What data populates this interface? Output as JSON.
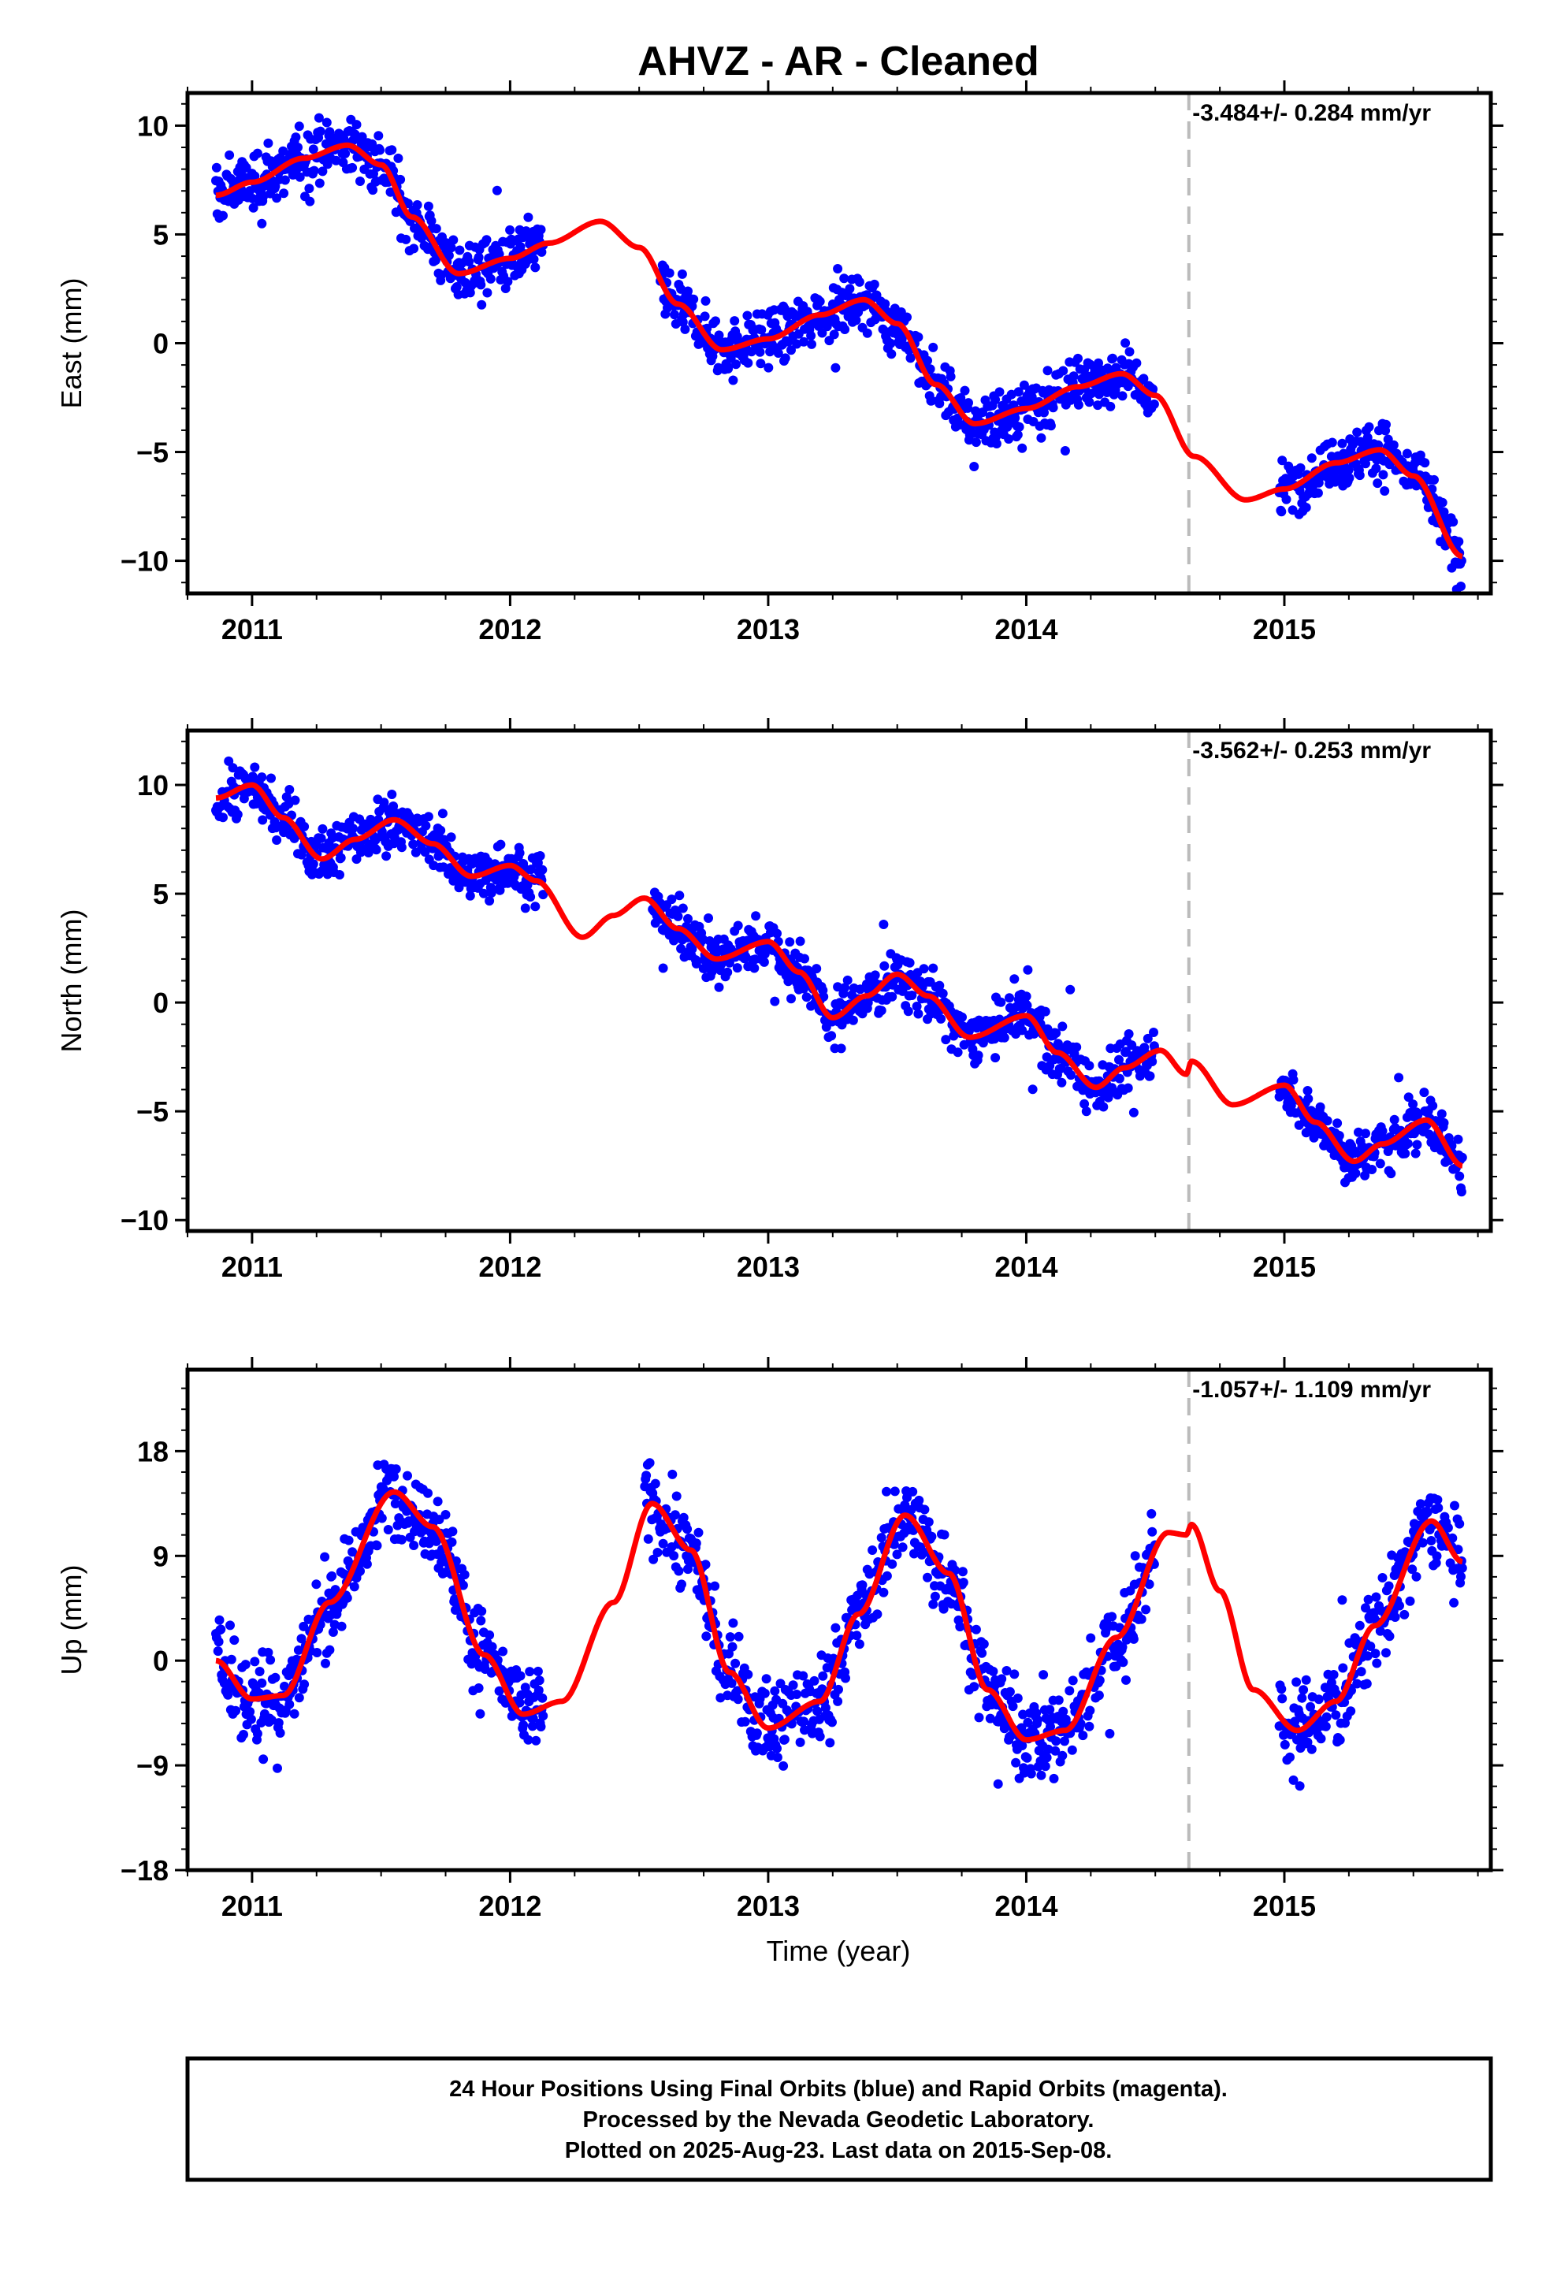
{
  "colors": {
    "final_orbits": "#0000ff",
    "model_fit": "#ff0000",
    "break_line": "#bbbbbb",
    "frame": "#000000"
  },
  "chart_data": {
    "title": "AHVZ  - AR - Cleaned",
    "xlabel": "Time (year)",
    "x_tick_labels": [
      "2011",
      "2012",
      "2013",
      "2014",
      "2015"
    ],
    "xlim": [
      2010.75,
      2015.8
    ],
    "break_epoch": 2014.63,
    "footer": [
      "24 Hour Positions Using Final Orbits (blue) and Rapid Orbits (magenta).",
      "Processed by the Nevada Geodetic Laboratory.",
      "Plotted on 2025-Aug-23. Last data on 2015-Sep-08."
    ],
    "panels": [
      {
        "type": "scatter",
        "component": "east",
        "ylabel": "East (mm)",
        "rate": "-3.484+/- 0.284 mm/yr",
        "ylim": [
          -11.5,
          11.5
        ],
        "ytick_labels": [
          "10",
          "5",
          "0",
          "−5",
          "−10"
        ],
        "yticks": [
          10,
          5,
          0,
          -5,
          -10
        ],
        "series": [
          {
            "legend": "Final Orbits (blue)",
            "color": "blue",
            "kind": "daily positions",
            "x_range": [
              2010.86,
              2015.69
            ],
            "noise_mm": 0.9
          },
          {
            "legend": "model",
            "color": "red",
            "kind": "trend + seasonal fit",
            "model_points": [
              [
                2010.86,
                6.8
              ],
              [
                2011.0,
                7.4
              ],
              [
                2011.2,
                8.5
              ],
              [
                2011.37,
                9.1
              ],
              [
                2011.5,
                8.2
              ],
              [
                2011.62,
                5.8
              ],
              [
                2011.8,
                3.2
              ],
              [
                2012.0,
                3.9
              ],
              [
                2012.15,
                4.6
              ],
              [
                2012.35,
                5.6
              ],
              [
                2012.5,
                4.4
              ],
              [
                2012.65,
                1.8
              ],
              [
                2012.82,
                -0.3
              ],
              [
                2013.0,
                0.2
              ],
              [
                2013.2,
                1.3
              ],
              [
                2013.37,
                2.0
              ],
              [
                2013.5,
                0.9
              ],
              [
                2013.65,
                -1.9
              ],
              [
                2013.8,
                -3.7
              ],
              [
                2014.0,
                -3.0
              ],
              [
                2014.2,
                -2.0
              ],
              [
                2014.37,
                -1.4
              ],
              [
                2014.5,
                -2.4
              ],
              [
                2014.65,
                -5.2
              ],
              [
                2014.85,
                -7.2
              ],
              [
                2015.0,
                -6.7
              ],
              [
                2015.2,
                -5.5
              ],
              [
                2015.37,
                -4.9
              ],
              [
                2015.5,
                -6.1
              ],
              [
                2015.69,
                -9.8
              ]
            ]
          }
        ]
      },
      {
        "type": "scatter",
        "component": "north",
        "ylabel": "North (mm)",
        "rate": "-3.562+/- 0.253 mm/yr",
        "ylim": [
          -10.5,
          12.5
        ],
        "ytick_labels": [
          "10",
          "5",
          "0",
          "−5",
          "−10"
        ],
        "yticks": [
          10,
          5,
          0,
          -5,
          -10
        ],
        "series": [
          {
            "legend": "Final Orbits (blue)",
            "color": "blue",
            "kind": "daily positions",
            "x_range": [
              2010.86,
              2015.69
            ],
            "noise_mm": 0.85
          },
          {
            "legend": "model",
            "color": "red",
            "kind": "trend + seasonal fit",
            "model_points": [
              [
                2010.86,
                9.4
              ],
              [
                2011.0,
                10.0
              ],
              [
                2011.12,
                8.5
              ],
              [
                2011.27,
                6.6
              ],
              [
                2011.4,
                7.5
              ],
              [
                2011.55,
                8.4
              ],
              [
                2011.7,
                7.3
              ],
              [
                2011.85,
                5.8
              ],
              [
                2012.0,
                6.3
              ],
              [
                2012.1,
                5.6
              ],
              [
                2012.28,
                3.0
              ],
              [
                2012.4,
                4.0
              ],
              [
                2012.52,
                4.8
              ],
              [
                2012.65,
                3.4
              ],
              [
                2012.8,
                2.0
              ],
              [
                2013.0,
                2.8
              ],
              [
                2013.12,
                1.4
              ],
              [
                2013.25,
                -0.7
              ],
              [
                2013.38,
                0.3
              ],
              [
                2013.5,
                1.3
              ],
              [
                2013.62,
                0.3
              ],
              [
                2013.78,
                -1.6
              ],
              [
                2014.0,
                -0.6
              ],
              [
                2014.12,
                -2.3
              ],
              [
                2014.27,
                -3.9
              ],
              [
                2014.38,
                -3.0
              ],
              [
                2014.52,
                -2.2
              ],
              [
                2014.62,
                -3.3
              ],
              [
                2014.64,
                -2.7
              ],
              [
                2014.8,
                -4.7
              ],
              [
                2015.0,
                -3.8
              ],
              [
                2015.12,
                -5.5
              ],
              [
                2015.27,
                -7.3
              ],
              [
                2015.38,
                -6.5
              ],
              [
                2015.55,
                -5.4
              ],
              [
                2015.69,
                -7.5
              ]
            ]
          }
        ]
      },
      {
        "type": "scatter",
        "component": "up",
        "ylabel": "Up (mm)",
        "rate": "-1.057+/- 1.109 mm/yr",
        "ylim": [
          -18,
          25
        ],
        "ytick_labels": [
          "18",
          "9",
          "0",
          "−9",
          "−18"
        ],
        "yticks": [
          18,
          9,
          0,
          -9,
          -18
        ],
        "series": [
          {
            "legend": "Final Orbits (blue)",
            "color": "blue",
            "kind": "daily positions",
            "x_range": [
              2010.86,
              2015.69
            ],
            "noise_mm": 2.6
          },
          {
            "legend": "model",
            "color": "red",
            "kind": "trend + seasonal fit",
            "model_points": [
              [
                2010.86,
                0.0
              ],
              [
                2011.0,
                -3.3
              ],
              [
                2011.12,
                -3.0
              ],
              [
                2011.3,
                5.0
              ],
              [
                2011.55,
                14.5
              ],
              [
                2011.7,
                11.5
              ],
              [
                2011.9,
                0.5
              ],
              [
                2012.05,
                -4.6
              ],
              [
                2012.2,
                -3.5
              ],
              [
                2012.4,
                5.0
              ],
              [
                2012.55,
                13.5
              ],
              [
                2012.7,
                9.5
              ],
              [
                2012.85,
                -1.0
              ],
              [
                2013.0,
                -5.8
              ],
              [
                2013.2,
                -3.5
              ],
              [
                2013.35,
                4.0
              ],
              [
                2013.53,
                12.5
              ],
              [
                2013.7,
                7.5
              ],
              [
                2013.85,
                -2.5
              ],
              [
                2014.0,
                -6.8
              ],
              [
                2014.15,
                -6.0
              ],
              [
                2014.35,
                2.0
              ],
              [
                2014.55,
                11.0
              ],
              [
                2014.62,
                10.8
              ],
              [
                2014.64,
                11.7
              ],
              [
                2014.75,
                6.0
              ],
              [
                2014.88,
                -2.5
              ],
              [
                2015.05,
                -6.0
              ],
              [
                2015.2,
                -3.5
              ],
              [
                2015.35,
                3.0
              ],
              [
                2015.57,
                12.0
              ],
              [
                2015.69,
                8.5
              ]
            ]
          }
        ]
      }
    ]
  }
}
